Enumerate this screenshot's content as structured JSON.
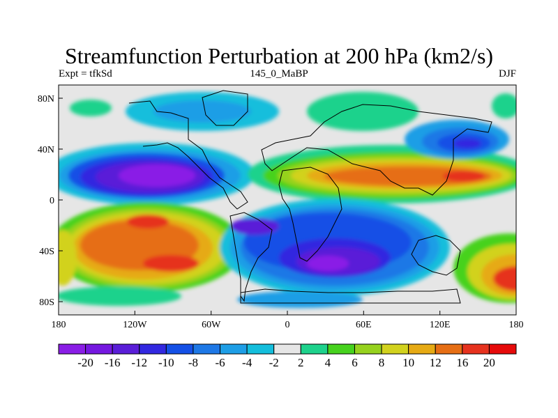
{
  "title": "Streamfunction Perturbation at 200 hPa (km2/s)",
  "left_label": "Expt = tfkSd",
  "center_label": "145_0_MaBP",
  "right_label": "DJF",
  "x_ticks": [
    "180",
    "120W",
    "60W",
    "0",
    "60E",
    "120E",
    "180"
  ],
  "y_ticks": [
    "80N",
    "40N",
    "0",
    "40S",
    "80S"
  ],
  "colorbar": {
    "labels": [
      "-20",
      "-16",
      "-12",
      "-10",
      "-8",
      "-6",
      "-4",
      "-2",
      "2",
      "4",
      "6",
      "8",
      "10",
      "12",
      "16",
      "20"
    ],
    "colors": [
      "#8a1ee6",
      "#7518e0",
      "#5a1ed8",
      "#3228e0",
      "#1450e6",
      "#1e78e6",
      "#1e9ee6",
      "#14bedc",
      "#e6e6e6",
      "#1ed28c",
      "#46d21e",
      "#96d21e",
      "#d2d21e",
      "#e6aa14",
      "#e66e14",
      "#e6321e",
      "#e60a0a"
    ]
  },
  "map": {
    "colors": {
      "background": "#e6e6e6",
      "deep_low": "#8a1ee6",
      "low2": "#5a1ed8",
      "low3": "#3228e0",
      "low4": "#1450e6",
      "low5": "#1e78e6",
      "low6": "#1e9ee6",
      "low7": "#14bedc",
      "high1": "#1ed28c",
      "high2": "#46d21e",
      "high3": "#96d21e",
      "high4": "#d2d21e",
      "high5": "#e6aa14",
      "high6": "#e66e14",
      "high7": "#e6321e",
      "coast": "#000000"
    }
  }
}
